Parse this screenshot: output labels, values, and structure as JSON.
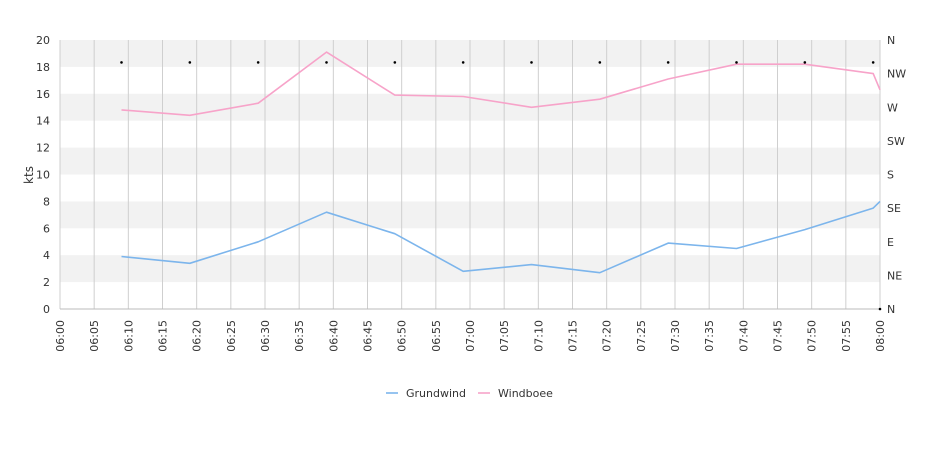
{
  "chart_data": {
    "type": "line",
    "title": "",
    "xlabel": "",
    "ylabel": "kts",
    "ylim": [
      0,
      20
    ],
    "y_ticks": [
      "0",
      "2",
      "4",
      "6",
      "8",
      "10",
      "12",
      "14",
      "16",
      "18",
      "20"
    ],
    "x_ticks": [
      "06:00",
      "06:05",
      "06:10",
      "06:15",
      "06:20",
      "06:25",
      "06:30",
      "06:35",
      "06:40",
      "06:45",
      "06:50",
      "06:55",
      "07:00",
      "07:05",
      "07:10",
      "07:15",
      "07:20",
      "07:25",
      "07:30",
      "07:35",
      "07:40",
      "07:45",
      "07:50",
      "07:55",
      "08:00"
    ],
    "xlim": [
      "06:00",
      "08:00"
    ],
    "direction_axis": {
      "labels": [
        "N",
        "NE",
        "E",
        "SE",
        "S",
        "SW",
        "W",
        "NW",
        "N"
      ],
      "range_deg": [
        0,
        360
      ]
    },
    "x": [
      "06:09",
      "06:19",
      "06:29",
      "06:39",
      "06:49",
      "06:59",
      "07:09",
      "07:19",
      "07:29",
      "07:39",
      "07:49",
      "07:59",
      "08:00"
    ],
    "series": [
      {
        "name": "Grundwind",
        "color": "#7cb5ec",
        "values": [
          3.9,
          3.4,
          5.0,
          7.2,
          5.6,
          2.8,
          3.3,
          2.7,
          4.9,
          4.5,
          5.9,
          7.5,
          8.0
        ]
      },
      {
        "name": "Windboee",
        "color": "#f7a3c9",
        "values": [
          14.8,
          14.4,
          15.3,
          19.1,
          15.9,
          15.8,
          15.0,
          15.6,
          17.1,
          18.2,
          18.2,
          17.5,
          16.3
        ]
      }
    ],
    "direction_points": {
      "x": [
        "06:09",
        "06:19",
        "06:29",
        "06:39",
        "06:49",
        "06:59",
        "07:09",
        "07:19",
        "07:29",
        "07:39",
        "07:49",
        "07:59",
        "08:00"
      ],
      "degrees": [
        330,
        330,
        330,
        330,
        330,
        330,
        330,
        330,
        330,
        330,
        330,
        330,
        0
      ]
    },
    "grid": true,
    "legend": {
      "placement": "bottom",
      "entries": [
        "Grundwind",
        "Windboee"
      ]
    }
  }
}
